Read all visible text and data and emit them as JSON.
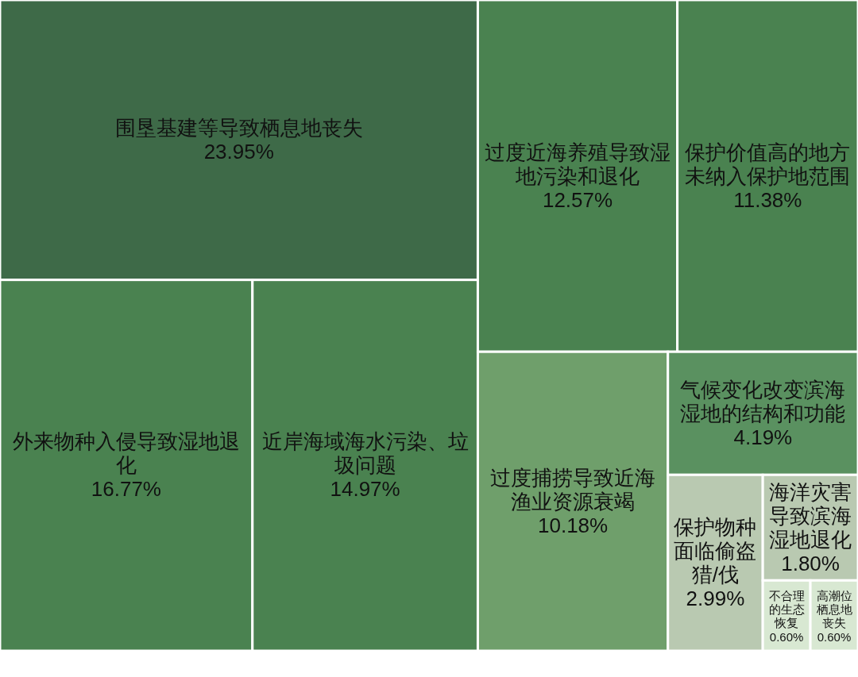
{
  "chart_data": {
    "type": "other",
    "categories": [
      "围垦基建等导致栖息地丧失",
      "外来物种入侵导致湿地退化",
      "近岸海域海水污染、垃圾问题",
      "过度近海养殖导致湿地污染和退化",
      "保护价值高的地方未纳入保护地范围",
      "过度捕捞导致近海渔业资源衰竭",
      "气候变化改变滨海湿地的结构和功能",
      "保护物种面临偷盗猎/伐",
      "海洋灾害导致滨海湿地退化",
      "不合理的生态恢复",
      "高潮位栖息地丧失"
    ],
    "values": [
      23.95,
      16.77,
      14.97,
      12.57,
      11.38,
      10.18,
      4.19,
      2.99,
      1.8,
      0.6,
      0.6
    ],
    "value_labels": [
      "23.95%",
      "16.77%",
      "14.97%",
      "12.57%",
      "11.38%",
      "10.18%",
      "4.19%",
      "2.99%",
      "1.80%",
      "0.60%",
      "0.60%"
    ],
    "colors": [
      "#3e6a48",
      "#4a8250",
      "#4a8250",
      "#4a8250",
      "#4a8250",
      "#6f9f6b",
      "#5a9160",
      "#b9c9b1",
      "#b9c9b1",
      "#d8e8d2",
      "#d8e8d2"
    ]
  }
}
